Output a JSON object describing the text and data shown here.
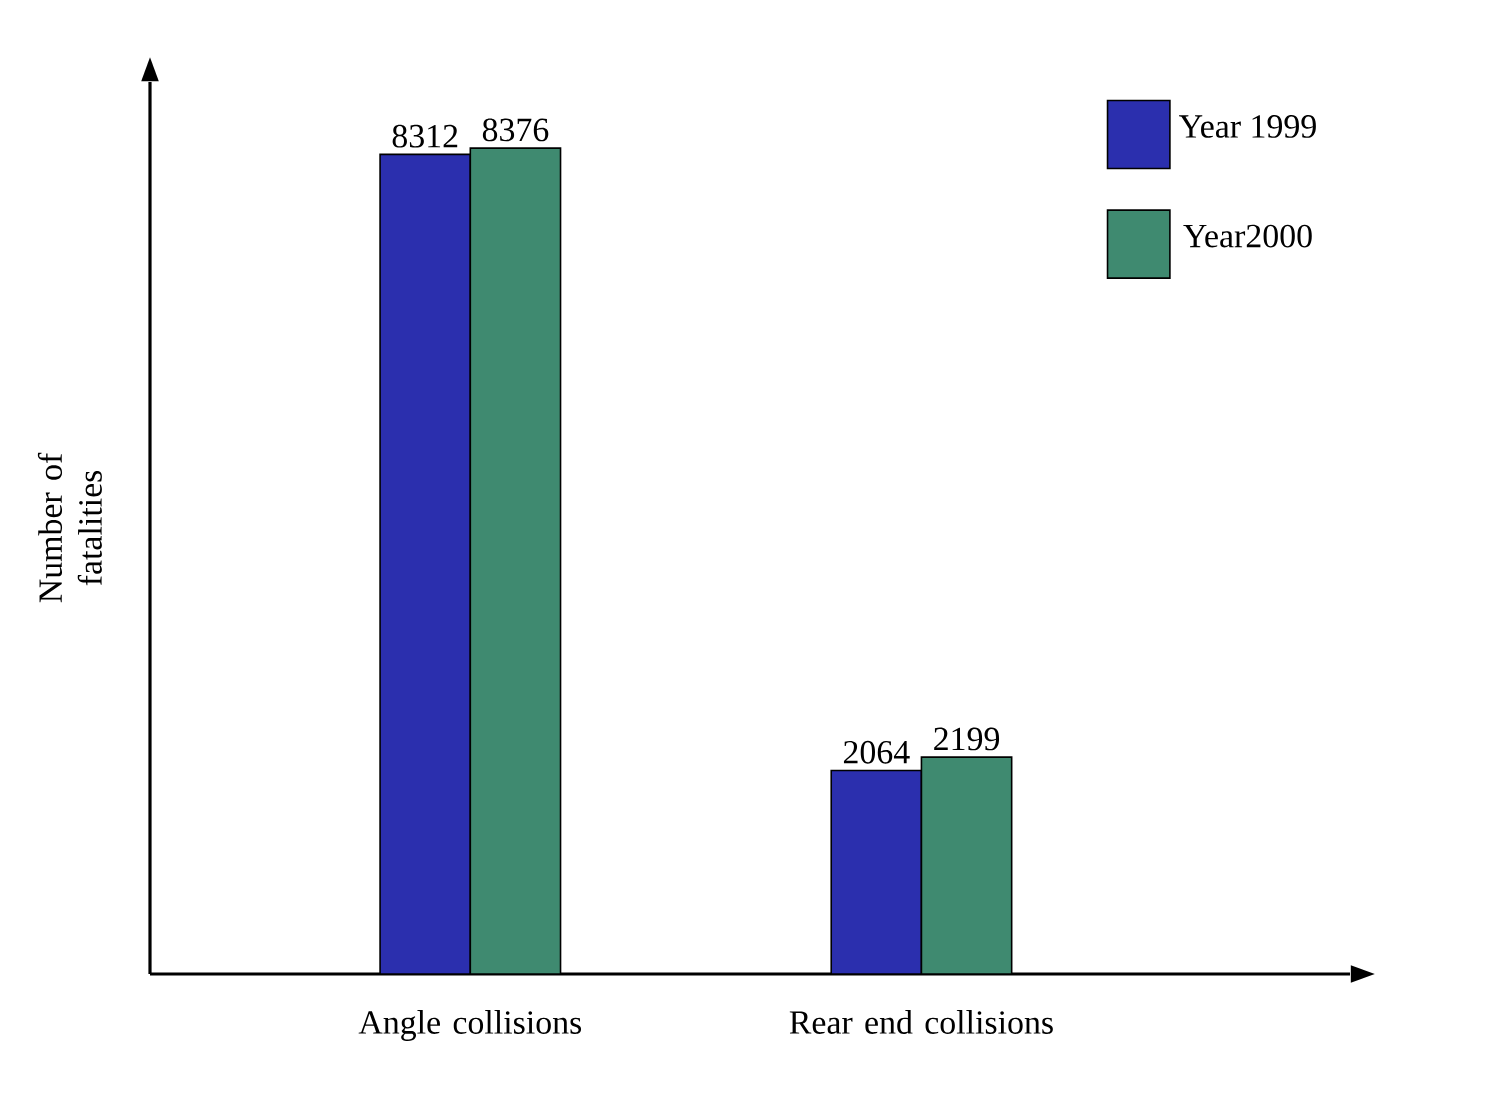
{
  "chart_data": {
    "type": "bar",
    "categories": [
      "Angle collisions",
      "Rear end collisions"
    ],
    "ylabel": "Number of fatalities",
    "series": [
      {
        "name": "Year 1999",
        "color": "#2b2fae",
        "values": [
          8312,
          2064
        ]
      },
      {
        "name": "Year2000",
        "color": "#3f8a70",
        "values": [
          8376,
          2199
        ]
      }
    ],
    "tick_labels": "x",
    "data_labels": true,
    "legend": "top right",
    "grid": false
  }
}
